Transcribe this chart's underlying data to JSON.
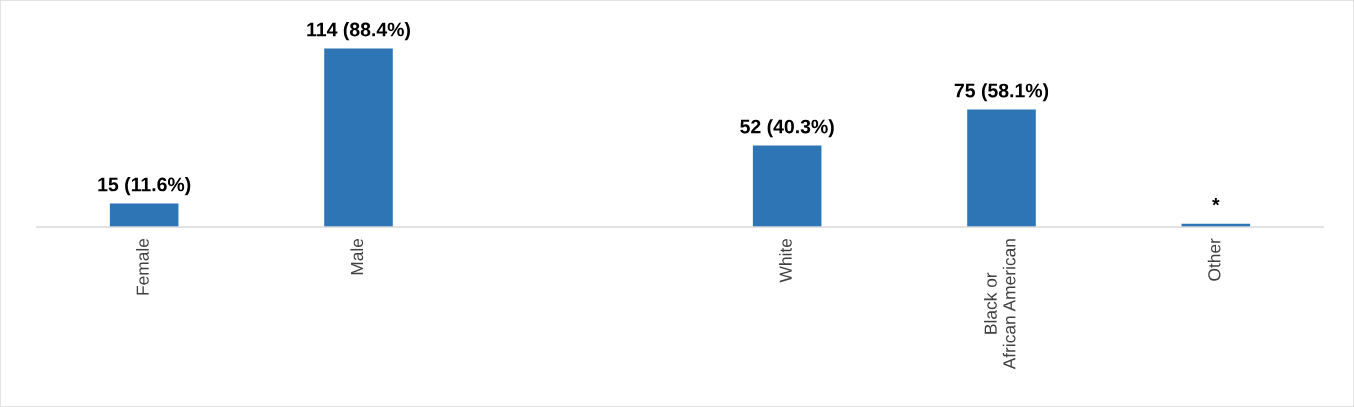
{
  "chart_data": {
    "type": "bar",
    "categories": [
      "Female",
      "Male",
      null,
      "White",
      "Black or African American",
      "Other"
    ],
    "values": [
      15,
      114,
      null,
      52,
      75,
      2
    ],
    "color": "#2e75b6",
    "value_labels": [
      "15 (11.6%)",
      "114 (88.4%)",
      null,
      "52 (40.3%)",
      "75 (58.1%)",
      "*"
    ],
    "grid": false,
    "legend": false
  }
}
